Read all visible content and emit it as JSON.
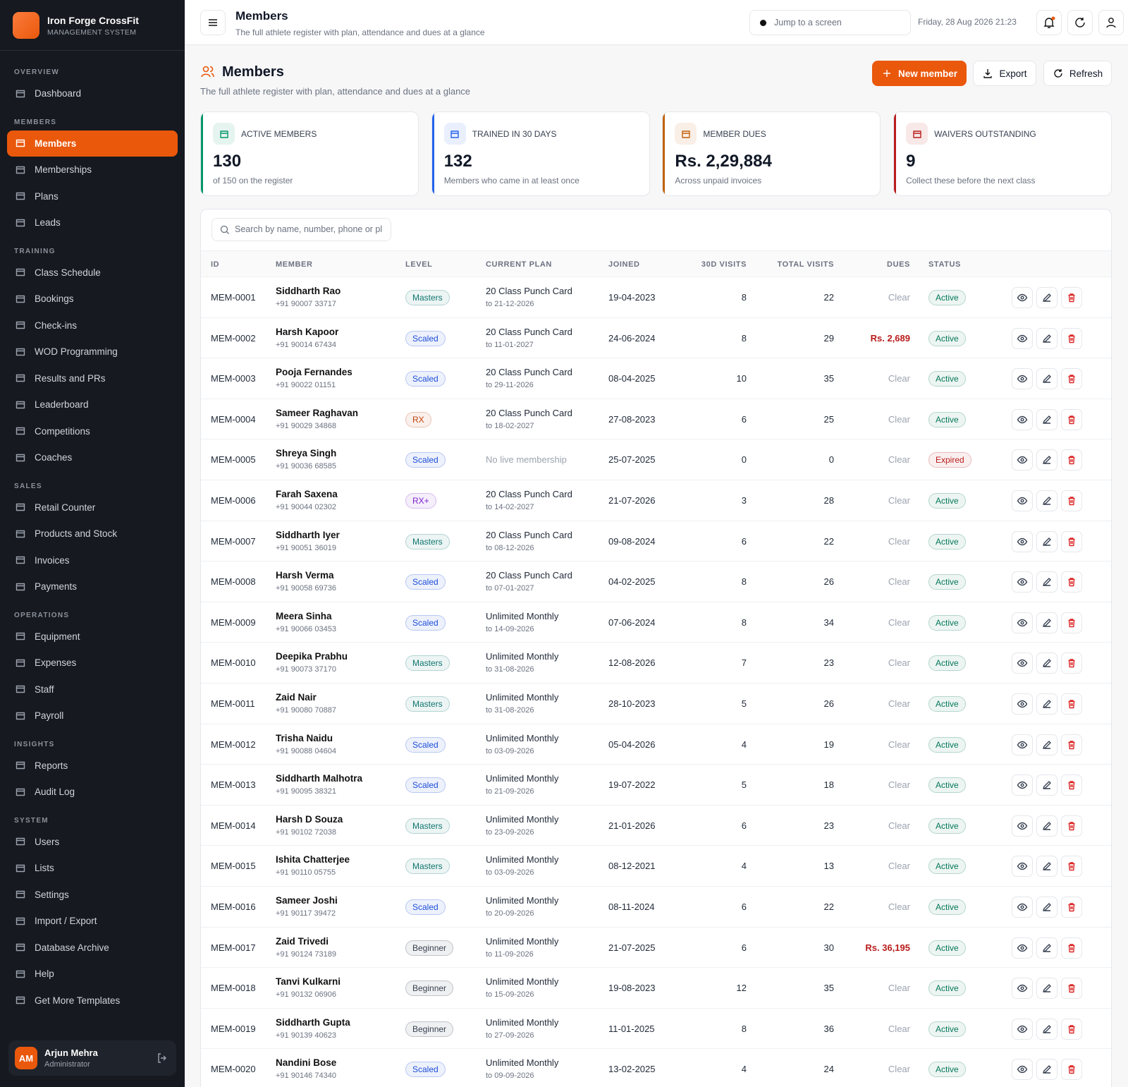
{
  "sidebar": {
    "brand": {
      "name": "Iron Forge CrossFit",
      "subtitle": "MANAGEMENT SYSTEM"
    },
    "sections": [
      {
        "label": "OVERVIEW",
        "items": [
          {
            "label": "Dashboard"
          }
        ]
      },
      {
        "label": "MEMBERS",
        "items": [
          {
            "label": "Members",
            "active": true
          },
          {
            "label": "Memberships"
          },
          {
            "label": "Plans"
          },
          {
            "label": "Leads"
          }
        ]
      },
      {
        "label": "TRAINING",
        "items": [
          {
            "label": "Class Schedule"
          },
          {
            "label": "Bookings"
          },
          {
            "label": "Check-ins"
          },
          {
            "label": "WOD Programming"
          },
          {
            "label": "Results and PRs"
          },
          {
            "label": "Leaderboard"
          },
          {
            "label": "Competitions"
          },
          {
            "label": "Coaches"
          }
        ]
      },
      {
        "label": "SALES",
        "items": [
          {
            "label": "Retail Counter"
          },
          {
            "label": "Products and Stock"
          },
          {
            "label": "Invoices"
          },
          {
            "label": "Payments"
          }
        ]
      },
      {
        "label": "OPERATIONS",
        "items": [
          {
            "label": "Equipment"
          },
          {
            "label": "Expenses"
          },
          {
            "label": "Staff"
          },
          {
            "label": "Payroll"
          }
        ]
      },
      {
        "label": "INSIGHTS",
        "items": [
          {
            "label": "Reports"
          },
          {
            "label": "Audit Log"
          }
        ]
      },
      {
        "label": "SYSTEM",
        "items": [
          {
            "label": "Users"
          },
          {
            "label": "Lists"
          },
          {
            "label": "Settings"
          },
          {
            "label": "Import / Export"
          },
          {
            "label": "Database Archive"
          },
          {
            "label": "Help"
          },
          {
            "label": "Get More Templates"
          }
        ]
      }
    ],
    "user": {
      "initials": "AM",
      "name": "Arjun Mehra",
      "role": "Administrator"
    }
  },
  "topbar": {
    "title": "Members",
    "subtitle": "The full athlete register with plan, attendance and dues at a glance",
    "search_placeholder": "Jump to a screen",
    "datetime": "Friday, 28 Aug 2026 21:23"
  },
  "header": {
    "title": "Members",
    "subtitle": "The full athlete register with plan, attendance and dues at a glance",
    "actions": [
      "New member",
      "Export",
      "Refresh"
    ]
  },
  "stats": [
    {
      "label": "ACTIVE MEMBERS",
      "value": 130,
      "note": "of 150 on the register",
      "color": "#059669"
    },
    {
      "label": "TRAINED IN 30 DAYS",
      "value": 132,
      "note": "Members who came in at least once",
      "color": "#2563eb"
    },
    {
      "label": "MEMBER DUES",
      "value": "Rs. 2,29,884",
      "note": "Across unpaid invoices",
      "color": "#c2610c"
    },
    {
      "label": "WAIVERS OUTSTANDING",
      "value": 9,
      "note": "Collect these before the next class",
      "color": "#b91c1c"
    }
  ],
  "table": {
    "search_placeholder": "Search by name, number, phone or pl",
    "columns": [
      "ID",
      "MEMBER",
      "LEVEL",
      "CURRENT PLAN",
      "JOINED",
      "30D VISITS",
      "TOTAL VISITS",
      "DUES",
      "STATUS"
    ],
    "rows": [
      {
        "id": "MEM-0001",
        "name": "Siddharth Rao",
        "phone": "+91 90007 33717",
        "level": "Masters",
        "level_color": "#0f766e",
        "plan": "20 Class Punch Card",
        "plan_to": "to 21-12-2026",
        "joined": "19-04-2023",
        "visits_30d": 8,
        "visits_total": 22,
        "dues": "Clear",
        "status": "Active",
        "status_color": "#047857"
      },
      {
        "id": "MEM-0002",
        "name": "Harsh Kapoor",
        "phone": "+91 90014 67434",
        "level": "Scaled",
        "level_color": "#1d4ed8",
        "plan": "20 Class Punch Card",
        "plan_to": "to 11-01-2027",
        "joined": "24-06-2024",
        "visits_30d": 8,
        "visits_total": 29,
        "dues": "Rs. 2,689",
        "dues_color": "#b91c1c",
        "status": "Active",
        "status_color": "#047857"
      },
      {
        "id": "MEM-0003",
        "name": "Pooja Fernandes",
        "phone": "+91 90022 01151",
        "level": "Scaled",
        "level_color": "#1d4ed8",
        "plan": "20 Class Punch Card",
        "plan_to": "to 29-11-2026",
        "joined": "08-04-2025",
        "visits_30d": 10,
        "visits_total": 35,
        "dues": "Clear",
        "status": "Active",
        "status_color": "#047857"
      },
      {
        "id": "MEM-0004",
        "name": "Sameer Raghavan",
        "phone": "+91 90029 34868",
        "level": "RX",
        "level_color": "#c2410c",
        "plan": "20 Class Punch Card",
        "plan_to": "to 18-02-2027",
        "joined": "27-08-2023",
        "visits_30d": 6,
        "visits_total": 25,
        "dues": "Clear",
        "status": "Active",
        "status_color": "#047857"
      },
      {
        "id": "MEM-0005",
        "name": "Shreya Singh",
        "phone": "+91 90036 68585",
        "level": "Scaled",
        "level_color": "#1d4ed8",
        "plan": "No live membership",
        "joined": "25-07-2025",
        "visits_30d": 0,
        "visits_total": 0,
        "dues": "Clear",
        "status": "Expired",
        "status_color": "#b91c1c"
      },
      {
        "id": "MEM-0006",
        "name": "Farah Saxena",
        "phone": "+91 90044 02302",
        "level": "RX+",
        "level_color": "#7e22ce",
        "plan": "20 Class Punch Card",
        "plan_to": "to 14-02-2027",
        "joined": "21-07-2026",
        "visits_30d": 3,
        "visits_total": 28,
        "dues": "Clear",
        "status": "Active",
        "status_color": "#047857"
      },
      {
        "id": "MEM-0007",
        "name": "Siddharth Iyer",
        "phone": "+91 90051 36019",
        "level": "Masters",
        "level_color": "#0f766e",
        "plan": "20 Class Punch Card",
        "plan_to": "to 08-12-2026",
        "joined": "09-08-2024",
        "visits_30d": 6,
        "visits_total": 22,
        "dues": "Clear",
        "status": "Active",
        "status_color": "#047857"
      },
      {
        "id": "MEM-0008",
        "name": "Harsh Verma",
        "phone": "+91 90058 69736",
        "level": "Scaled",
        "level_color": "#1d4ed8",
        "plan": "20 Class Punch Card",
        "plan_to": "to 07-01-2027",
        "joined": "04-02-2025",
        "visits_30d": 8,
        "visits_total": 26,
        "dues": "Clear",
        "status": "Active",
        "status_color": "#047857"
      },
      {
        "id": "MEM-0009",
        "name": "Meera Sinha",
        "phone": "+91 90066 03453",
        "level": "Scaled",
        "level_color": "#1d4ed8",
        "plan": "Unlimited Monthly",
        "plan_to": "to 14-09-2026",
        "joined": "07-06-2024",
        "visits_30d": 8,
        "visits_total": 34,
        "dues": "Clear",
        "status": "Active",
        "status_color": "#047857"
      },
      {
        "id": "MEM-0010",
        "name": "Deepika Prabhu",
        "phone": "+91 90073 37170",
        "level": "Masters",
        "level_color": "#0f766e",
        "plan": "Unlimited Monthly",
        "plan_to": "to 31-08-2026",
        "joined": "12-08-2026",
        "visits_30d": 7,
        "visits_total": 23,
        "dues": "Clear",
        "status": "Active",
        "status_color": "#047857"
      },
      {
        "id": "MEM-0011",
        "name": "Zaid Nair",
        "phone": "+91 90080 70887",
        "level": "Masters",
        "level_color": "#0f766e",
        "plan": "Unlimited Monthly",
        "plan_to": "to 31-08-2026",
        "joined": "28-10-2023",
        "visits_30d": 5,
        "visits_total": 26,
        "dues": "Clear",
        "status": "Active",
        "status_color": "#047857"
      },
      {
        "id": "MEM-0012",
        "name": "Trisha Naidu",
        "phone": "+91 90088 04604",
        "level": "Scaled",
        "level_color": "#1d4ed8",
        "plan": "Unlimited Monthly",
        "plan_to": "to 03-09-2026",
        "joined": "05-04-2026",
        "visits_30d": 4,
        "visits_total": 19,
        "dues": "Clear",
        "status": "Active",
        "status_color": "#047857"
      },
      {
        "id": "MEM-0013",
        "name": "Siddharth Malhotra",
        "phone": "+91 90095 38321",
        "level": "Scaled",
        "level_color": "#1d4ed8",
        "plan": "Unlimited Monthly",
        "plan_to": "to 21-09-2026",
        "joined": "19-07-2022",
        "visits_30d": 5,
        "visits_total": 18,
        "dues": "Clear",
        "status": "Active",
        "status_color": "#047857"
      },
      {
        "id": "MEM-0014",
        "name": "Harsh D Souza",
        "phone": "+91 90102 72038",
        "level": "Masters",
        "level_color": "#0f766e",
        "plan": "Unlimited Monthly",
        "plan_to": "to 23-09-2026",
        "joined": "21-01-2026",
        "visits_30d": 6,
        "visits_total": 23,
        "dues": "Clear",
        "status": "Active",
        "status_color": "#047857"
      },
      {
        "id": "MEM-0015",
        "name": "Ishita Chatterjee",
        "phone": "+91 90110 05755",
        "level": "Masters",
        "level_color": "#0f766e",
        "plan": "Unlimited Monthly",
        "plan_to": "to 03-09-2026",
        "joined": "08-12-2021",
        "visits_30d": 4,
        "visits_total": 13,
        "dues": "Clear",
        "status": "Active",
        "status_color": "#047857"
      },
      {
        "id": "MEM-0016",
        "name": "Sameer Joshi",
        "phone": "+91 90117 39472",
        "level": "Scaled",
        "level_color": "#1d4ed8",
        "plan": "Unlimited Monthly",
        "plan_to": "to 20-09-2026",
        "joined": "08-11-2024",
        "visits_30d": 6,
        "visits_total": 22,
        "dues": "Clear",
        "status": "Active",
        "status_color": "#047857"
      },
      {
        "id": "MEM-0017",
        "name": "Zaid Trivedi",
        "phone": "+91 90124 73189",
        "level": "Beginner",
        "level_color": "#374151",
        "plan": "Unlimited Monthly",
        "plan_to": "to 11-09-2026",
        "joined": "21-07-2025",
        "visits_30d": 6,
        "visits_total": 30,
        "dues": "Rs. 36,195",
        "dues_color": "#b91c1c",
        "status": "Active",
        "status_color": "#047857"
      },
      {
        "id": "MEM-0018",
        "name": "Tanvi Kulkarni",
        "phone": "+91 90132 06906",
        "level": "Beginner",
        "level_color": "#374151",
        "plan": "Unlimited Monthly",
        "plan_to": "to 15-09-2026",
        "joined": "19-08-2023",
        "visits_30d": 12,
        "visits_total": 35,
        "dues": "Clear",
        "status": "Active",
        "status_color": "#047857"
      },
      {
        "id": "MEM-0019",
        "name": "Siddharth Gupta",
        "phone": "+91 90139 40623",
        "level": "Beginner",
        "level_color": "#374151",
        "plan": "Unlimited Monthly",
        "plan_to": "to 27-09-2026",
        "joined": "11-01-2025",
        "visits_30d": 8,
        "visits_total": 36,
        "dues": "Clear",
        "status": "Active",
        "status_color": "#047857"
      },
      {
        "id": "MEM-0020",
        "name": "Nandini Bose",
        "phone": "+91 90146 74340",
        "level": "Scaled",
        "level_color": "#1d4ed8",
        "plan": "Unlimited Monthly",
        "plan_to": "to 09-09-2026",
        "joined": "13-02-2025",
        "visits_30d": 4,
        "visits_total": 24,
        "dues": "Clear",
        "status": "Active",
        "status_color": "#047857"
      }
    ]
  }
}
